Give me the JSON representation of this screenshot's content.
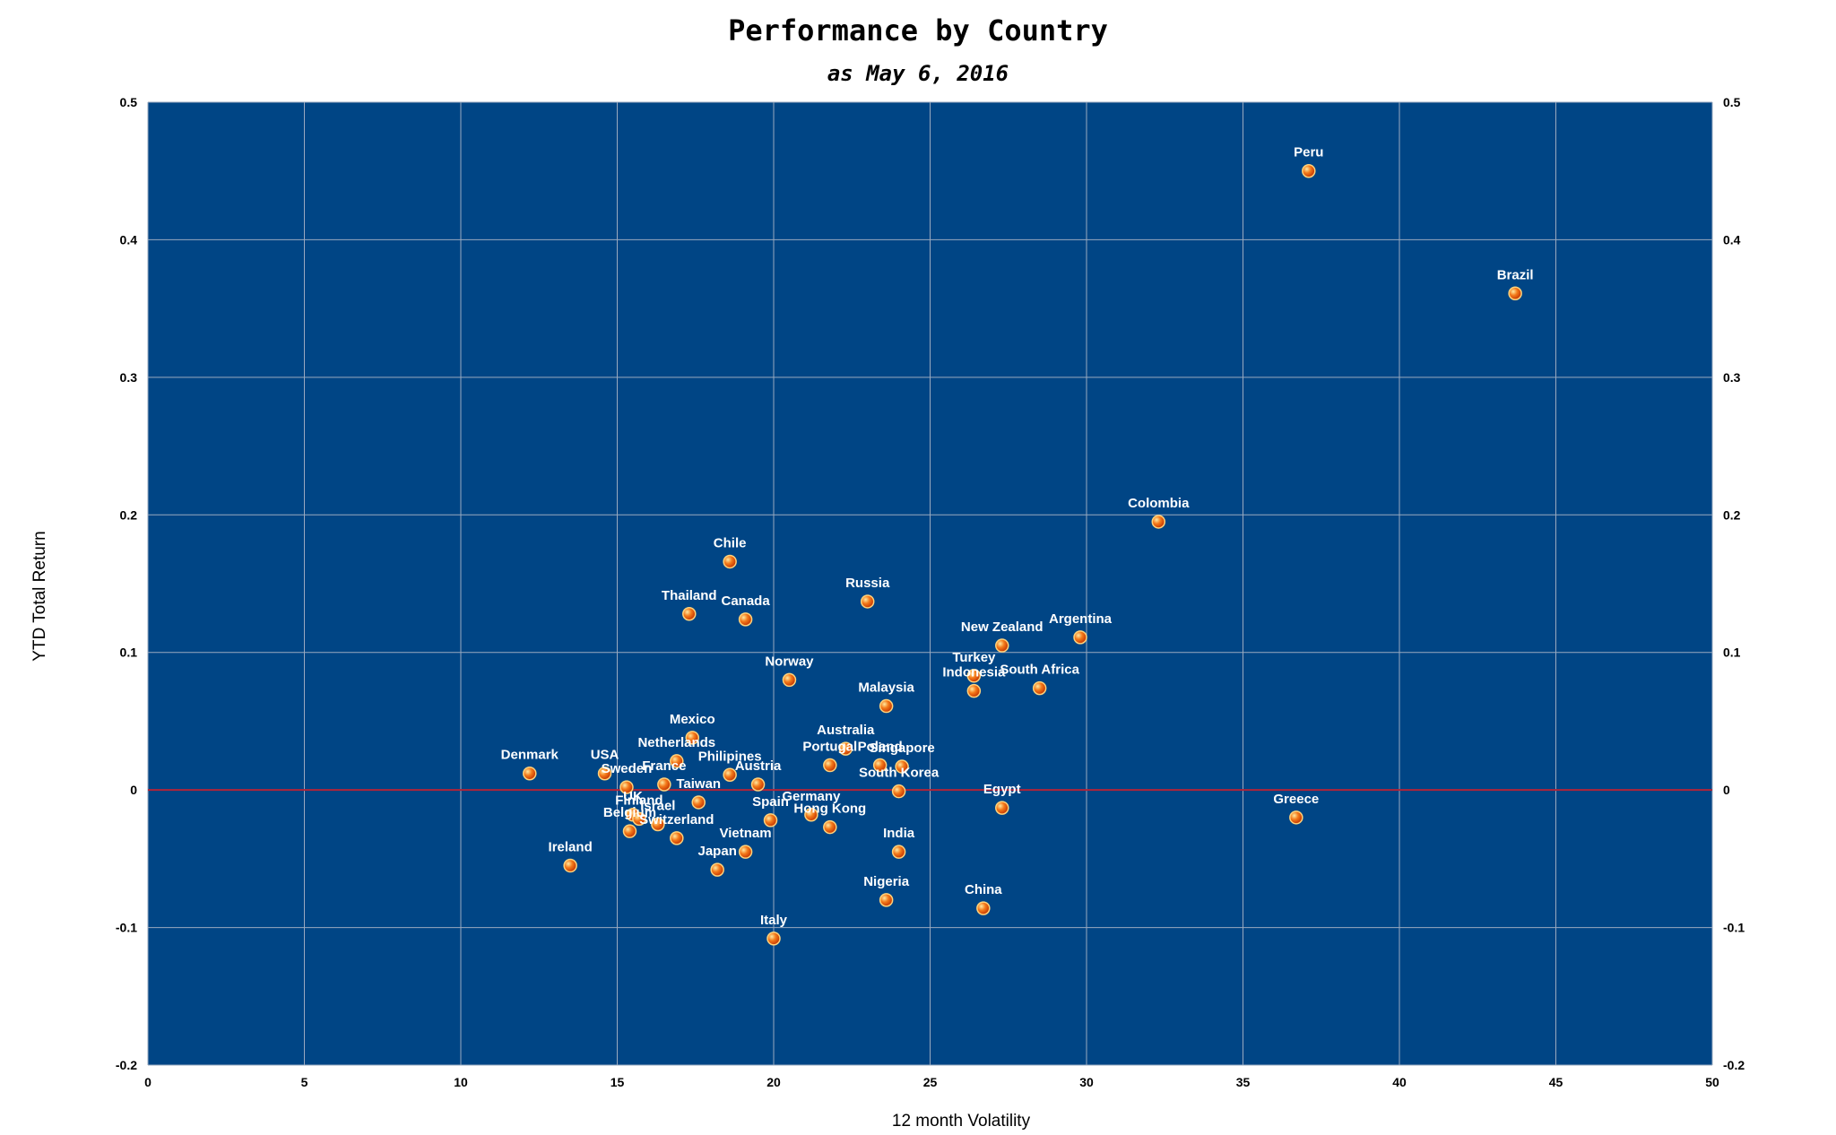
{
  "chart_data": {
    "type": "scatter",
    "title": "Performance by Country",
    "subtitle": "as May 6, 2016",
    "xlabel": "12 month Volatility",
    "ylabel": "YTD Total Return",
    "xlim": [
      0,
      50
    ],
    "ylim": [
      -0.2,
      0.5
    ],
    "x_ticks": [
      "0",
      "5",
      "10",
      "15",
      "20",
      "25",
      "30",
      "35",
      "40",
      "45",
      "50"
    ],
    "y_ticks": [
      "-0.2",
      "-0.1",
      "0",
      "0.1",
      "0.2",
      "0.3",
      "0.4",
      "0.5"
    ],
    "y_ticks_right": [
      "-0.2",
      "-0.1",
      "0",
      "0.1",
      "0.2",
      "0.3",
      "0.4",
      "0.5"
    ],
    "grid": true,
    "reference_line_y": 0,
    "colors": {
      "plot_background": "#004585",
      "grid": "#9aa9bf",
      "zero_line": "#b0243a",
      "marker": "#f06010",
      "marker_edge": "#ffd27a",
      "label": "#ffffff"
    },
    "points": [
      {
        "label": "Peru",
        "x": 37.1,
        "y": 0.45
      },
      {
        "label": "Brazil",
        "x": 43.7,
        "y": 0.361
      },
      {
        "label": "Colombia",
        "x": 32.3,
        "y": 0.195
      },
      {
        "label": "Chile",
        "x": 18.6,
        "y": 0.166
      },
      {
        "label": "Russia",
        "x": 23.0,
        "y": 0.137
      },
      {
        "label": "Thailand",
        "x": 17.3,
        "y": 0.128
      },
      {
        "label": "Canada",
        "x": 19.1,
        "y": 0.124
      },
      {
        "label": "Argentina",
        "x": 29.8,
        "y": 0.111
      },
      {
        "label": "New Zealand",
        "x": 27.3,
        "y": 0.105
      },
      {
        "label": "Turkey",
        "x": 26.4,
        "y": 0.083
      },
      {
        "label": "Norway",
        "x": 20.5,
        "y": 0.08
      },
      {
        "label": "Indonesia",
        "x": 26.4,
        "y": 0.072
      },
      {
        "label": "South Africa",
        "x": 28.5,
        "y": 0.074
      },
      {
        "label": "Malaysia",
        "x": 23.6,
        "y": 0.061
      },
      {
        "label": "Mexico",
        "x": 17.4,
        "y": 0.038
      },
      {
        "label": "Australia",
        "x": 22.3,
        "y": 0.03
      },
      {
        "label": "Netherlands",
        "x": 16.9,
        "y": 0.021
      },
      {
        "label": "Portugal",
        "x": 21.8,
        "y": 0.018
      },
      {
        "label": "Poland",
        "x": 23.4,
        "y": 0.018
      },
      {
        "label": "Singapore",
        "x": 24.1,
        "y": 0.017
      },
      {
        "label": "Denmark",
        "x": 12.2,
        "y": 0.012
      },
      {
        "label": "USA",
        "x": 14.6,
        "y": 0.012
      },
      {
        "label": "Philipines",
        "x": 18.6,
        "y": 0.011
      },
      {
        "label": "Sweden",
        "x": 15.3,
        "y": 0.002
      },
      {
        "label": "France",
        "x": 16.5,
        "y": 0.004
      },
      {
        "label": "Austria",
        "x": 19.5,
        "y": 0.004
      },
      {
        "label": "Taiwan",
        "x": 17.6,
        "y": -0.009
      },
      {
        "label": "South Korea",
        "x": 24.0,
        "y": -0.001
      },
      {
        "label": "Egypt",
        "x": 27.3,
        "y": -0.013
      },
      {
        "label": "Greece",
        "x": 36.7,
        "y": -0.02
      },
      {
        "label": "Germany",
        "x": 21.2,
        "y": -0.018
      },
      {
        "label": "Spain",
        "x": 19.9,
        "y": -0.022
      },
      {
        "label": "Hong Kong",
        "x": 21.8,
        "y": -0.027
      },
      {
        "label": "UK",
        "x": 15.5,
        "y": -0.018
      },
      {
        "label": "Finland",
        "x": 15.7,
        "y": -0.021
      },
      {
        "label": "Israel",
        "x": 16.3,
        "y": -0.025
      },
      {
        "label": "Belgium",
        "x": 15.4,
        "y": -0.03
      },
      {
        "label": "Switzerland",
        "x": 16.9,
        "y": -0.035
      },
      {
        "label": "Vietnam",
        "x": 19.1,
        "y": -0.045
      },
      {
        "label": "India",
        "x": 24.0,
        "y": -0.045
      },
      {
        "label": "Ireland",
        "x": 13.5,
        "y": -0.055
      },
      {
        "label": "Japan",
        "x": 18.2,
        "y": -0.058
      },
      {
        "label": "Nigeria",
        "x": 23.6,
        "y": -0.08
      },
      {
        "label": "China",
        "x": 26.7,
        "y": -0.086
      },
      {
        "label": "Italy",
        "x": 20.0,
        "y": -0.108
      }
    ]
  }
}
